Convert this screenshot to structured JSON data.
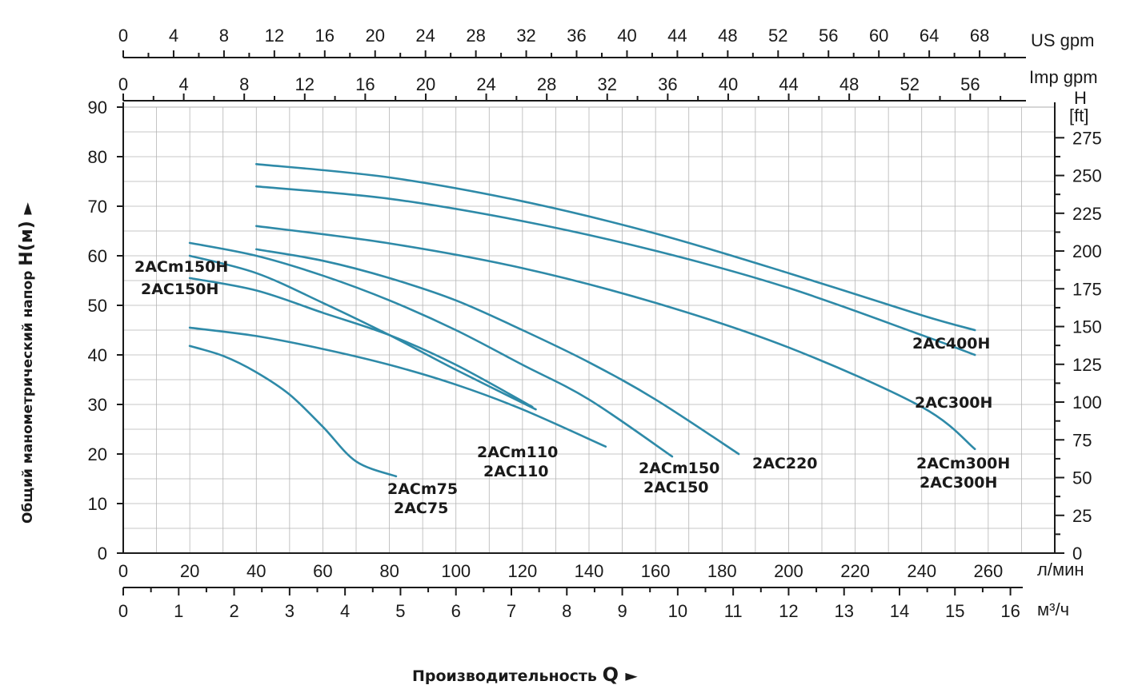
{
  "chart_data": {
    "type": "line",
    "x_unit_primary": "л/мин",
    "xlim_lpm": [
      0,
      280
    ],
    "x_ticks_lpm": [
      0,
      20,
      40,
      60,
      80,
      100,
      120,
      140,
      160,
      180,
      200,
      220,
      240,
      260
    ],
    "x_unit_m3h": "м³/ч",
    "x_ticks_m3h": [
      0,
      1,
      2,
      3,
      4,
      5,
      6,
      7,
      8,
      9,
      10,
      11,
      12,
      13,
      14,
      15,
      16
    ],
    "x_unit_us": "US gpm",
    "x_ticks_us": [
      0,
      4,
      8,
      12,
      16,
      20,
      24,
      28,
      32,
      36,
      40,
      44,
      48,
      52,
      56,
      60,
      64,
      68
    ],
    "x_unit_imp": "Imp gpm",
    "x_ticks_imp": [
      0,
      4,
      8,
      12,
      16,
      20,
      24,
      28,
      32,
      36,
      40,
      44,
      48,
      52,
      56
    ],
    "ylim_m": [
      0,
      90
    ],
    "y_ticks_m": [
      0,
      10,
      20,
      30,
      40,
      50,
      60,
      70,
      80,
      90
    ],
    "y_right_unit_top": "H",
    "y_right_unit": "[ft]",
    "y_ticks_ft": [
      0,
      25,
      50,
      75,
      100,
      125,
      150,
      175,
      200,
      225,
      250,
      275
    ],
    "ylabel": "Общий манометрический напор",
    "ylabel_symbol": "H(м)",
    "ylabel_arrow": "►",
    "xlabel": "Производительность",
    "xlabel_symbol": "Q",
    "xlabel_arrow": "►",
    "grid": true,
    "line_color": "#2e8aa8",
    "series": [
      {
        "name": "2ACm75 / 2AC75",
        "x": [
          20,
          30,
          40,
          50,
          60,
          70,
          82
        ],
        "y": [
          41.8,
          39.8,
          36.5,
          32,
          25.5,
          18.5,
          15.5
        ]
      },
      {
        "name": "2ACm110 / 2AC110",
        "x": [
          20,
          40,
          60,
          80,
          100,
          120,
          145
        ],
        "y": [
          45.5,
          43.8,
          41.2,
          38,
          34,
          29,
          21.5
        ]
      },
      {
        "name": "2ACm150H / 2AC150H",
        "x": [
          20,
          40,
          60,
          80,
          100,
          124
        ],
        "y": [
          60,
          56.5,
          50.5,
          44,
          37,
          29
        ]
      },
      {
        "name": "2ACm150H / 2AC150H",
        "x": [
          20,
          40,
          60,
          80,
          100,
          123
        ],
        "y": [
          55.5,
          53,
          48.5,
          44,
          38,
          29.5
        ]
      },
      {
        "name": "2ACm150 / 2AC150",
        "x": [
          20,
          40,
          60,
          80,
          100,
          120,
          140,
          165
        ],
        "y": [
          62.6,
          60,
          56,
          51,
          45,
          38,
          31,
          19.5
        ]
      },
      {
        "name": "2AC220",
        "x": [
          40,
          60,
          80,
          100,
          120,
          140,
          160,
          185
        ],
        "y": [
          61.3,
          59,
          55.5,
          51,
          45,
          38.5,
          31,
          20
        ]
      },
      {
        "name": "2ACm300H / 2AC300H",
        "x": [
          40,
          80,
          120,
          160,
          200,
          240,
          256
        ],
        "y": [
          66,
          62.5,
          57.5,
          50.5,
          41.5,
          29.5,
          21
        ]
      },
      {
        "name": "2AC300H",
        "x": [
          40,
          80,
          120,
          160,
          200,
          240,
          256
        ],
        "y": [
          74,
          71.5,
          67,
          61,
          53.5,
          44,
          40
        ]
      },
      {
        "name": "2AC400H",
        "x": [
          40,
          80,
          120,
          160,
          200,
          240,
          256
        ],
        "y": [
          78.5,
          75.8,
          71,
          64.5,
          56.5,
          48,
          45
        ]
      }
    ],
    "curve_labels": [
      {
        "line1": "2ACm150H",
        "line2": "2AC150H"
      },
      {
        "line1": "2ACm75",
        "line2": "2AC75"
      },
      {
        "line1": "2ACm110",
        "line2": "2AC110"
      },
      {
        "line1": "2ACm150",
        "line2": "2AC150"
      },
      {
        "line1": "2AC220",
        "line2": ""
      },
      {
        "line1": "2AC400H",
        "line2": ""
      },
      {
        "line1": "2AC300H",
        "line2": ""
      },
      {
        "line1": "2ACm300H",
        "line2": "2AC300H"
      }
    ]
  }
}
